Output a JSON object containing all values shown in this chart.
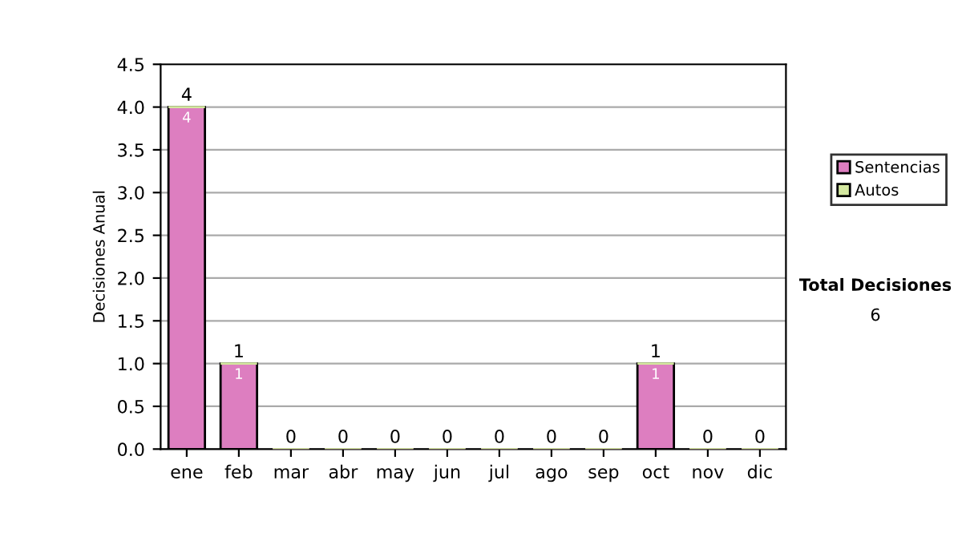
{
  "chart_data": {
    "type": "bar",
    "stacked": true,
    "ylabel": "Decisiones Anual",
    "categories": [
      "ene",
      "feb",
      "mar",
      "abr",
      "may",
      "jun",
      "jul",
      "ago",
      "sep",
      "oct",
      "nov",
      "dic"
    ],
    "series": [
      {
        "name": "Sentencias",
        "color": "#dd7ec0",
        "values": [
          4,
          1,
          0,
          0,
          0,
          0,
          0,
          0,
          0,
          1,
          0,
          0
        ],
        "value_labels": [
          "4",
          "1",
          null,
          null,
          null,
          null,
          null,
          null,
          null,
          "1",
          null,
          null
        ]
      },
      {
        "name": "Autos",
        "color": "#d4e8a0",
        "values": [
          0,
          0,
          0,
          0,
          0,
          0,
          0,
          0,
          0,
          0,
          0,
          0
        ]
      }
    ],
    "totals": [
      "4",
      "1",
      "0",
      "0",
      "0",
      "0",
      "0",
      "0",
      "0",
      "1",
      "0",
      "0"
    ],
    "ylim": [
      0,
      4.5
    ],
    "yticks": [
      {
        "value": 0,
        "label": "0.0"
      },
      {
        "value": 0.5,
        "label": "0.5"
      },
      {
        "value": 1,
        "label": "1.0"
      },
      {
        "value": 1.5,
        "label": "1.5"
      },
      {
        "value": 2,
        "label": "2.0"
      },
      {
        "value": 2.5,
        "label": "2.5"
      },
      {
        "value": 3,
        "label": "3.0"
      },
      {
        "value": 3.5,
        "label": "3.5"
      },
      {
        "value": 4,
        "label": "4.0"
      },
      {
        "value": 4.5,
        "label": "4.5"
      }
    ],
    "grid": "y",
    "legend": "right",
    "annotations": [
      "Total Decisiones",
      "6"
    ]
  }
}
